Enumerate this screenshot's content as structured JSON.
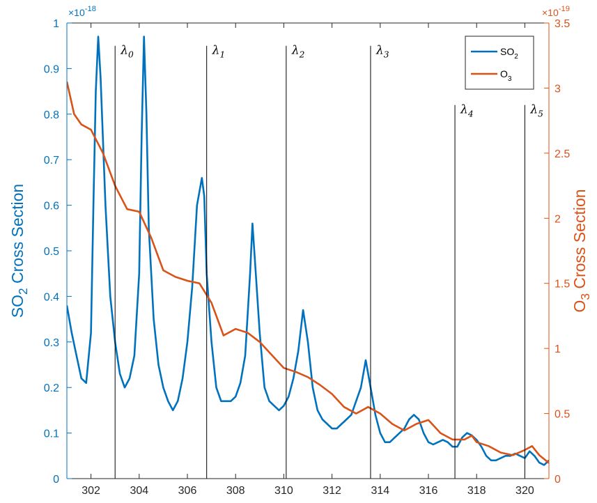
{
  "chart_data": {
    "type": "line",
    "x_ticks": [
      302,
      304,
      306,
      308,
      310,
      312,
      314,
      316,
      318,
      320
    ],
    "xlim": [
      301,
      321
    ],
    "left_axis": {
      "ylim": [
        0,
        1
      ],
      "ticks": [
        0,
        0.1,
        0.2,
        0.3,
        0.4,
        0.5,
        0.6,
        0.7,
        0.8,
        0.9,
        1
      ],
      "tick_labels": [
        "0",
        "0.1",
        "0.2",
        "0.3",
        "0.4",
        "0.5",
        "0.6",
        "0.7",
        "0.8",
        "0.9",
        "1"
      ],
      "exponent_base": "×10",
      "exponent": "-18",
      "ylabel_main": "SO",
      "ylabel_sub": "2",
      "ylabel_rest": " Cross Section",
      "color": "#0072BD"
    },
    "right_axis": {
      "ylim": [
        0,
        3.5
      ],
      "ticks": [
        0,
        0.5,
        1,
        1.5,
        2,
        2.5,
        3,
        3.5
      ],
      "tick_labels": [
        "0",
        "0.5",
        "1",
        "1.5",
        "2",
        "2.5",
        "3",
        "3.5"
      ],
      "exponent_base": "×10",
      "exponent": "-19",
      "ylabel_main": "O",
      "ylabel_sub": "3",
      "ylabel_rest": " Cross Section",
      "color": "#D95319"
    },
    "series": [
      {
        "name": "SO2",
        "legend_main": "SO",
        "legend_sub": "2",
        "axis": "left",
        "color": "#0072BD",
        "x": [
          301.0,
          301.2,
          301.4,
          301.6,
          301.8,
          302.0,
          302.1,
          302.2,
          302.3,
          302.4,
          302.6,
          302.8,
          303.0,
          303.2,
          303.4,
          303.6,
          303.8,
          304.0,
          304.1,
          304.2,
          304.3,
          304.4,
          304.6,
          304.8,
          305.0,
          305.2,
          305.4,
          305.6,
          305.8,
          306.0,
          306.2,
          306.4,
          306.6,
          306.7,
          306.8,
          307.0,
          307.2,
          307.4,
          307.6,
          307.8,
          308.0,
          308.2,
          308.4,
          308.6,
          308.7,
          308.8,
          309.0,
          309.2,
          309.4,
          309.6,
          309.8,
          310.0,
          310.2,
          310.4,
          310.6,
          310.8,
          311.0,
          311.2,
          311.4,
          311.6,
          311.8,
          312.0,
          312.2,
          312.4,
          312.6,
          312.8,
          313.0,
          313.2,
          313.4,
          313.6,
          313.8,
          314.0,
          314.2,
          314.4,
          314.6,
          314.8,
          315.0,
          315.2,
          315.4,
          315.6,
          315.8,
          316.0,
          316.2,
          316.4,
          316.6,
          316.8,
          317.0,
          317.2,
          317.4,
          317.6,
          317.8,
          318.0,
          318.2,
          318.4,
          318.6,
          318.8,
          319.0,
          319.2,
          319.4,
          319.6,
          319.8,
          320.0,
          320.2,
          320.4,
          320.6,
          320.8,
          321.0
        ],
        "values": [
          0.38,
          0.32,
          0.27,
          0.22,
          0.21,
          0.32,
          0.6,
          0.85,
          0.97,
          0.88,
          0.6,
          0.4,
          0.3,
          0.23,
          0.2,
          0.22,
          0.27,
          0.45,
          0.75,
          0.97,
          0.8,
          0.55,
          0.35,
          0.25,
          0.2,
          0.17,
          0.15,
          0.17,
          0.22,
          0.3,
          0.42,
          0.6,
          0.66,
          0.62,
          0.45,
          0.3,
          0.2,
          0.17,
          0.17,
          0.17,
          0.18,
          0.21,
          0.27,
          0.45,
          0.56,
          0.48,
          0.32,
          0.2,
          0.17,
          0.16,
          0.15,
          0.16,
          0.18,
          0.22,
          0.28,
          0.37,
          0.3,
          0.2,
          0.15,
          0.13,
          0.12,
          0.11,
          0.11,
          0.12,
          0.13,
          0.14,
          0.17,
          0.2,
          0.26,
          0.2,
          0.14,
          0.1,
          0.08,
          0.08,
          0.09,
          0.1,
          0.11,
          0.13,
          0.14,
          0.13,
          0.1,
          0.08,
          0.075,
          0.08,
          0.085,
          0.08,
          0.07,
          0.07,
          0.09,
          0.1,
          0.095,
          0.085,
          0.07,
          0.05,
          0.04,
          0.04,
          0.045,
          0.05,
          0.05,
          0.055,
          0.05,
          0.045,
          0.06,
          0.05,
          0.035,
          0.03,
          0.04
        ]
      },
      {
        "name": "O3",
        "legend_main": "O",
        "legend_sub": "3",
        "axis": "right",
        "color": "#D95319",
        "x": [
          301.0,
          301.3,
          301.6,
          302.0,
          302.5,
          303.0,
          303.5,
          304.0,
          304.5,
          305.0,
          305.5,
          306.0,
          306.5,
          307.0,
          307.5,
          308.0,
          308.5,
          309.0,
          309.5,
          310.0,
          310.5,
          311.0,
          311.5,
          312.0,
          312.5,
          313.0,
          313.5,
          314.0,
          314.5,
          315.0,
          315.5,
          316.0,
          316.5,
          317.0,
          317.5,
          317.8,
          318.0,
          318.5,
          319.0,
          319.5,
          320.0,
          320.3,
          320.6,
          321.0
        ],
        "values": [
          3.05,
          2.8,
          2.72,
          2.68,
          2.5,
          2.25,
          2.07,
          2.05,
          1.85,
          1.6,
          1.55,
          1.52,
          1.5,
          1.35,
          1.1,
          1.15,
          1.12,
          1.05,
          0.95,
          0.85,
          0.82,
          0.78,
          0.72,
          0.65,
          0.55,
          0.5,
          0.55,
          0.5,
          0.42,
          0.37,
          0.42,
          0.45,
          0.35,
          0.3,
          0.3,
          0.33,
          0.28,
          0.25,
          0.2,
          0.18,
          0.22,
          0.25,
          0.18,
          0.12
        ]
      }
    ],
    "vlines": [
      {
        "label_main": "λ",
        "label_sub": "0",
        "x": 303.0,
        "top_y": 0.95
      },
      {
        "label_main": "λ",
        "label_sub": "1",
        "x": 306.8,
        "top_y": 0.95
      },
      {
        "label_main": "λ",
        "label_sub": "2",
        "x": 310.1,
        "top_y": 0.95
      },
      {
        "label_main": "λ",
        "label_sub": "3",
        "x": 313.6,
        "top_y": 0.95
      },
      {
        "label_main": "λ",
        "label_sub": "4",
        "x": 317.1,
        "top_y": 0.82
      },
      {
        "label_main": "λ",
        "label_sub": "5",
        "x": 320.0,
        "top_y": 0.82
      }
    ],
    "legend_position": "top-right",
    "grid": false
  }
}
